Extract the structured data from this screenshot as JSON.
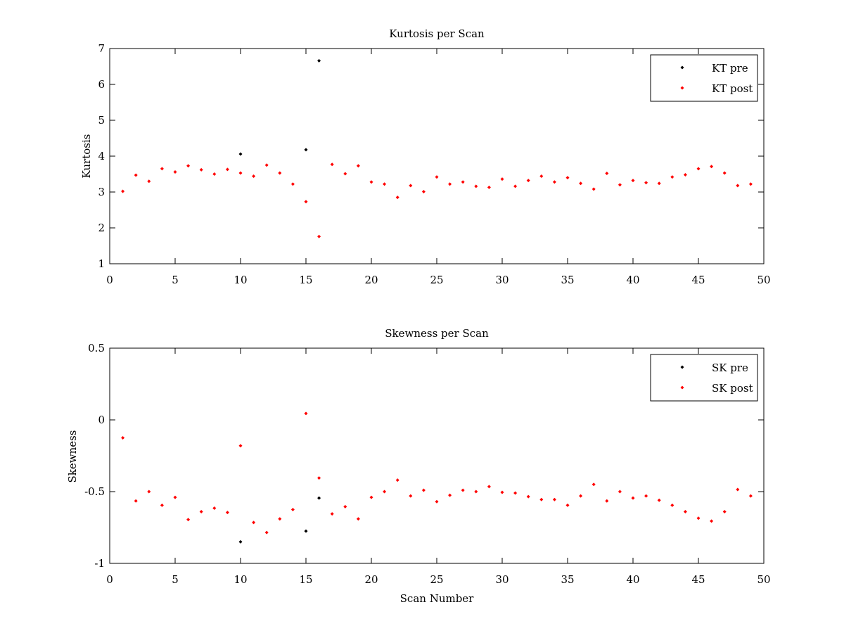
{
  "chart_data": [
    {
      "type": "scatter",
      "title": "Kurtosis per Scan",
      "xlabel": "",
      "ylabel": "Kurtosis",
      "xlim": [
        0,
        50
      ],
      "ylim": [
        1,
        7
      ],
      "xticks": [
        0,
        5,
        10,
        15,
        20,
        25,
        30,
        35,
        40,
        45,
        50
      ],
      "yticks": [
        1,
        2,
        3,
        4,
        5,
        6,
        7
      ],
      "grid": false,
      "legend_position": "top-right",
      "series": [
        {
          "name": "KT pre",
          "color": "#000000",
          "x": [
            10,
            15,
            16
          ],
          "y": [
            4.06,
            4.18,
            6.66
          ]
        },
        {
          "name": "KT post",
          "color": "#ff0000",
          "x": [
            1,
            2,
            3,
            4,
            5,
            6,
            7,
            8,
            9,
            10,
            11,
            12,
            13,
            14,
            15,
            16,
            17,
            18,
            19,
            20,
            21,
            22,
            23,
            24,
            25,
            26,
            27,
            28,
            29,
            30,
            31,
            32,
            33,
            34,
            35,
            36,
            37,
            38,
            39,
            40,
            41,
            42,
            43,
            44,
            45,
            46,
            47,
            48,
            49
          ],
          "y": [
            3.02,
            3.47,
            3.3,
            3.65,
            3.56,
            3.73,
            3.62,
            3.5,
            3.63,
            3.53,
            3.44,
            3.75,
            3.53,
            3.22,
            2.73,
            1.76,
            3.77,
            3.51,
            3.73,
            3.28,
            3.22,
            2.85,
            3.18,
            3.01,
            3.42,
            3.22,
            3.28,
            3.16,
            3.13,
            3.36,
            3.16,
            3.32,
            3.44,
            3.28,
            3.4,
            3.24,
            3.08,
            3.52,
            3.2,
            3.32,
            3.26,
            3.24,
            3.42,
            3.48,
            3.65,
            3.71,
            3.53,
            3.18,
            3.22
          ]
        }
      ]
    },
    {
      "type": "scatter",
      "title": "Skewness per Scan",
      "xlabel": "Scan Number",
      "ylabel": "Skewness",
      "xlim": [
        0,
        50
      ],
      "ylim": [
        -1,
        0.5
      ],
      "xticks": [
        0,
        5,
        10,
        15,
        20,
        25,
        30,
        35,
        40,
        45,
        50
      ],
      "yticks": [
        -1,
        -0.5,
        0,
        0.5
      ],
      "grid": false,
      "legend_position": "top-right",
      "series": [
        {
          "name": "SK pre",
          "color": "#000000",
          "x": [
            10,
            15,
            16
          ],
          "y": [
            -0.85,
            -0.775,
            -0.545
          ]
        },
        {
          "name": "SK post",
          "color": "#ff0000",
          "x": [
            1,
            2,
            3,
            4,
            5,
            6,
            7,
            8,
            9,
            10,
            11,
            12,
            13,
            14,
            15,
            16,
            17,
            18,
            19,
            20,
            21,
            22,
            23,
            24,
            25,
            26,
            27,
            28,
            29,
            30,
            31,
            32,
            33,
            34,
            35,
            36,
            37,
            38,
            39,
            40,
            41,
            42,
            43,
            44,
            45,
            46,
            47,
            48,
            49
          ],
          "y": [
            -0.125,
            -0.565,
            -0.5,
            -0.595,
            -0.54,
            -0.695,
            -0.64,
            -0.615,
            -0.645,
            -0.18,
            -0.715,
            -0.785,
            -0.69,
            -0.625,
            0.045,
            -0.405,
            -0.655,
            -0.605,
            -0.69,
            -0.54,
            -0.5,
            -0.42,
            -0.53,
            -0.49,
            -0.57,
            -0.525,
            -0.49,
            -0.5,
            -0.465,
            -0.505,
            -0.51,
            -0.535,
            -0.555,
            -0.555,
            -0.595,
            -0.53,
            -0.45,
            -0.565,
            -0.5,
            -0.545,
            -0.53,
            -0.56,
            -0.595,
            -0.64,
            -0.685,
            -0.705,
            -0.64,
            -0.485,
            -0.53
          ]
        }
      ]
    }
  ]
}
